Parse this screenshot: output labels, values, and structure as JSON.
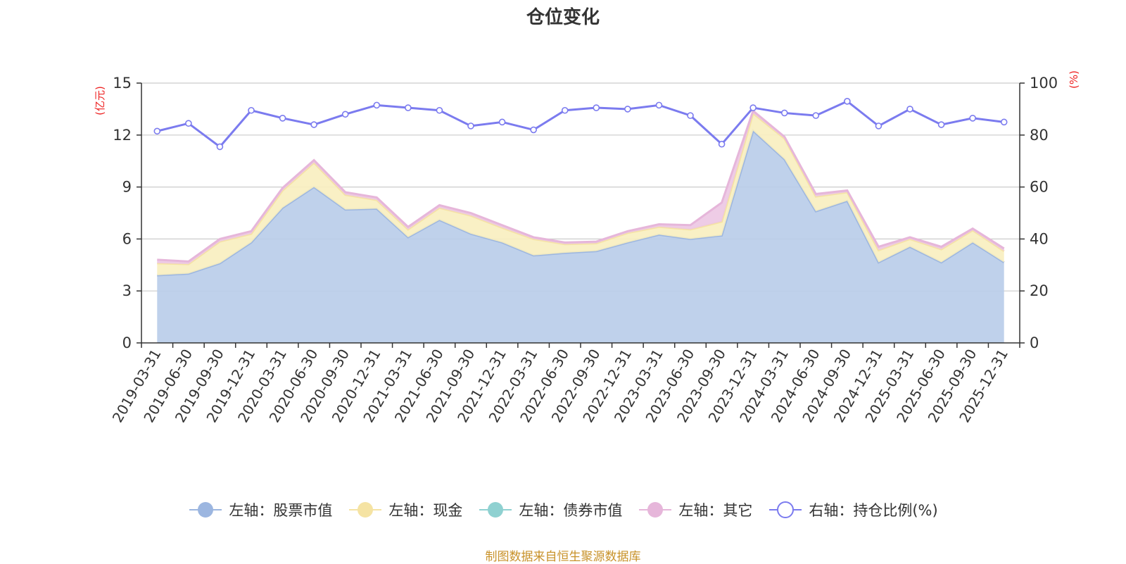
{
  "chart_data": {
    "type": "area",
    "title": "仓位变化",
    "y_left_label": "(亿元)",
    "y_right_label": "(%)",
    "y_left_ticks": [
      "0",
      "3",
      "6",
      "9",
      "12",
      "15"
    ],
    "y_right_ticks": [
      "0",
      "20",
      "40",
      "60",
      "80",
      "100"
    ],
    "y_left_lim": [
      0,
      15
    ],
    "y_right_lim": [
      0,
      100
    ],
    "grid": true,
    "legend_position": "bottom-center",
    "categories": [
      "2019-03-31",
      "2019-06-30",
      "2019-09-30",
      "2019-12-31",
      "2020-03-31",
      "2020-06-30",
      "2020-09-30",
      "2020-12-31",
      "2021-03-31",
      "2021-06-30",
      "2021-09-30",
      "2021-12-31",
      "2022-03-31",
      "2022-06-30",
      "2022-09-30",
      "2022-12-31",
      "2023-03-31",
      "2023-06-30",
      "2023-09-30",
      "2023-12-31",
      "2024-03-31",
      "2024-06-30",
      "2024-09-30",
      "2024-12-31",
      "2025-03-31",
      "2025-06-30",
      "2025-09-30",
      "2025-12-31"
    ],
    "series": [
      {
        "name": "左轴：股票市值",
        "axis": "left",
        "kind": "stacked-area",
        "color": "#9cb6e0",
        "fill": "#b8cce9",
        "values": [
          3.9,
          4.0,
          4.6,
          5.8,
          7.8,
          9.0,
          7.7,
          7.75,
          6.1,
          7.1,
          6.3,
          5.8,
          5.05,
          5.2,
          5.3,
          5.8,
          6.25,
          6.0,
          6.2,
          12.25,
          10.6,
          7.6,
          8.2,
          4.65,
          5.55,
          4.65,
          5.8,
          4.65
        ]
      },
      {
        "name": "左轴：现金",
        "axis": "left",
        "kind": "stacked-area",
        "color": "#f5e3a3",
        "fill": "#f8eebf",
        "values": [
          0.7,
          0.55,
          1.25,
          0.5,
          1.0,
          1.4,
          0.85,
          0.5,
          0.45,
          0.7,
          1.05,
          0.85,
          0.95,
          0.5,
          0.45,
          0.55,
          0.45,
          0.55,
          0.8,
          1.0,
          1.2,
          0.85,
          0.5,
          0.7,
          0.45,
          0.75,
          0.7,
          0.65
        ]
      },
      {
        "name": "左轴：债券市值",
        "axis": "left",
        "kind": "stacked-area",
        "color": "#8fd1d1",
        "fill": "#bfe6e6",
        "values": [
          0,
          0,
          0,
          0,
          0,
          0,
          0,
          0,
          0,
          0,
          0,
          0,
          0,
          0,
          0,
          0,
          0,
          0,
          0,
          0,
          0,
          0,
          0,
          0,
          0,
          0,
          0,
          0
        ]
      },
      {
        "name": "左轴：其它",
        "axis": "left",
        "kind": "stacked-area",
        "color": "#e6b6da",
        "fill": "#ecc7e3",
        "values": [
          0.2,
          0.15,
          0.15,
          0.15,
          0.15,
          0.15,
          0.15,
          0.15,
          0.15,
          0.15,
          0.15,
          0.15,
          0.1,
          0.1,
          0.1,
          0.1,
          0.15,
          0.25,
          1.1,
          0.15,
          0.1,
          0.15,
          0.1,
          0.2,
          0.1,
          0.15,
          0.1,
          0.15
        ]
      },
      {
        "name": "右轴：持仓比例(%)",
        "axis": "right",
        "kind": "line",
        "color": "#7b7bef",
        "values": [
          81.5,
          84.5,
          75.5,
          89.5,
          86.5,
          84.0,
          88.0,
          91.5,
          90.5,
          89.5,
          83.5,
          85.0,
          82.0,
          89.5,
          90.5,
          90.0,
          91.5,
          87.5,
          76.5,
          90.5,
          88.5,
          87.5,
          93.0,
          83.5,
          90.0,
          84.0,
          86.5,
          85.0
        ]
      }
    ]
  },
  "source_note": "制图数据来自恒生聚源数据库"
}
